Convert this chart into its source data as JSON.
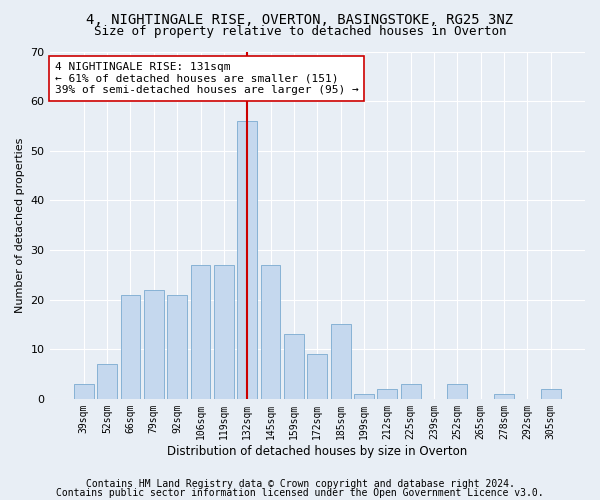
{
  "title1": "4, NIGHTINGALE RISE, OVERTON, BASINGSTOKE, RG25 3NZ",
  "title2": "Size of property relative to detached houses in Overton",
  "xlabel": "Distribution of detached houses by size in Overton",
  "ylabel": "Number of detached properties",
  "categories": [
    "39sqm",
    "52sqm",
    "66sqm",
    "79sqm",
    "92sqm",
    "106sqm",
    "119sqm",
    "132sqm",
    "145sqm",
    "159sqm",
    "172sqm",
    "185sqm",
    "199sqm",
    "212sqm",
    "225sqm",
    "239sqm",
    "252sqm",
    "265sqm",
    "278sqm",
    "292sqm",
    "305sqm"
  ],
  "values": [
    3,
    7,
    21,
    22,
    21,
    27,
    27,
    56,
    27,
    13,
    9,
    15,
    1,
    2,
    3,
    0,
    3,
    0,
    1,
    0,
    2
  ],
  "bar_color": "#c5d8ee",
  "bar_edgecolor": "#7aaad0",
  "vline_x_index": 7,
  "vline_color": "#cc0000",
  "annotation_text": "4 NIGHTINGALE RISE: 131sqm\n← 61% of detached houses are smaller (151)\n39% of semi-detached houses are larger (95) →",
  "annotation_box_edgecolor": "#cc0000",
  "annotation_box_facecolor": "#ffffff",
  "ylim": [
    0,
    70
  ],
  "yticks": [
    0,
    10,
    20,
    30,
    40,
    50,
    60,
    70
  ],
  "footer1": "Contains HM Land Registry data © Crown copyright and database right 2024.",
  "footer2": "Contains public sector information licensed under the Open Government Licence v3.0.",
  "background_color": "#e8eef5",
  "plot_background_color": "#e8eef5",
  "title1_fontsize": 10,
  "title2_fontsize": 9,
  "xlabel_fontsize": 8.5,
  "ylabel_fontsize": 8,
  "tick_fontsize": 8,
  "xtick_fontsize": 7,
  "footer_fontsize": 7,
  "annotation_fontsize": 8
}
